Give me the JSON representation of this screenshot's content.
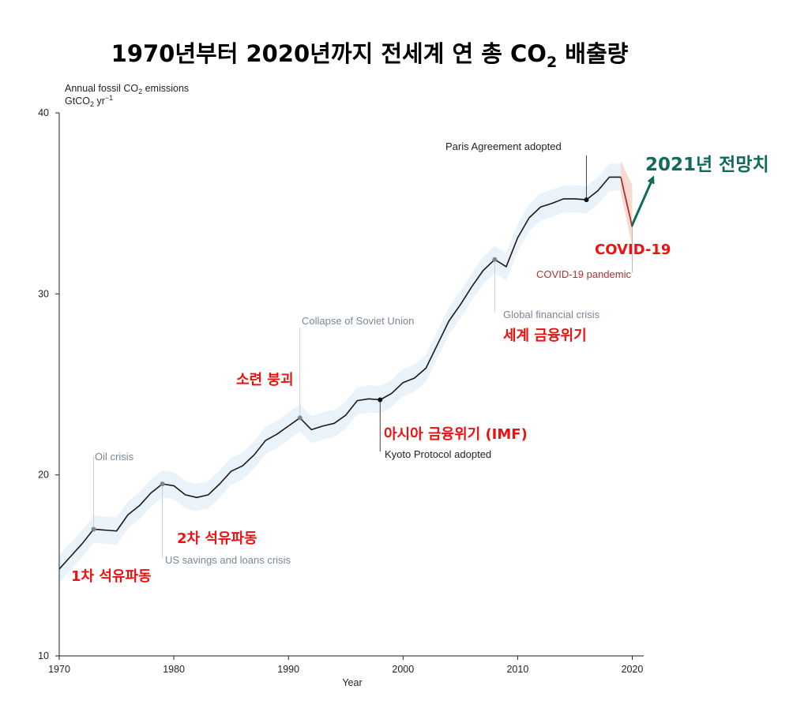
{
  "chart_data": {
    "type": "line",
    "title_main": "1970년부터 2020년까지 전세계 연 총 CO",
    "title_sub": "2",
    "title_end": " 배출량",
    "ylabel_line1": "Annual fossil CO",
    "ylabel_line1_sub": "2",
    "ylabel_line1_end": " emissions",
    "ylabel_line2": "GtCO",
    "ylabel_line2_sub": "2",
    "ylabel_line2_end": " yr",
    "ylabel_line2_sup": "−1",
    "xlabel": "Year",
    "xlim": [
      1970,
      2021
    ],
    "ylim": [
      10,
      40
    ],
    "xticks": [
      "1970",
      "1980",
      "1990",
      "2000",
      "2010",
      "2020"
    ],
    "yticks": [
      "10",
      "20",
      "30",
      "40"
    ],
    "series": [
      {
        "name": "Fossil CO2 emissions",
        "color": "#1a1a1a",
        "x": [
          1970,
          1971,
          1972,
          1973,
          1974,
          1975,
          1976,
          1977,
          1978,
          1979,
          1980,
          1981,
          1982,
          1983,
          1984,
          1985,
          1986,
          1987,
          1988,
          1989,
          1990,
          1991,
          1992,
          1993,
          1994,
          1995,
          1996,
          1997,
          1998,
          1999,
          2000,
          2001,
          2002,
          2003,
          2004,
          2005,
          2006,
          2007,
          2008,
          2009,
          2010,
          2011,
          2012,
          2013,
          2014,
          2015,
          2016,
          2017,
          2018,
          2019
        ],
        "values": [
          14.8,
          15.5,
          16.2,
          17.0,
          16.95,
          16.9,
          17.8,
          18.3,
          19.0,
          19.5,
          19.4,
          18.9,
          18.75,
          18.9,
          19.5,
          20.2,
          20.5,
          21.1,
          21.9,
          22.25,
          22.7,
          23.15,
          22.5,
          22.7,
          22.85,
          23.3,
          24.1,
          24.2,
          24.15,
          24.5,
          25.1,
          25.35,
          25.9,
          27.2,
          28.5,
          29.4,
          30.4,
          31.3,
          31.9,
          31.5,
          33.1,
          34.2,
          34.8,
          35.0,
          35.25,
          35.25,
          35.2,
          35.7,
          36.45,
          36.45
        ]
      },
      {
        "name": "COVID-19 drop",
        "color": "#b03030",
        "x": [
          2019,
          2020
        ],
        "values": [
          36.45,
          33.7
        ]
      }
    ],
    "uncertainty_band_halfwidth": 0.75,
    "events": [
      {
        "year": 1973,
        "value": 17.0,
        "label": "Oil crisis",
        "label_pos": "above",
        "style": "gray"
      },
      {
        "year": 1979,
        "value": 19.5,
        "label": "US savings and loans crisis",
        "label_pos": "below",
        "style": "gray"
      },
      {
        "year": 1991,
        "value": 23.15,
        "label": "Collapse of Soviet Union",
        "label_pos": "above",
        "style": "gray"
      },
      {
        "year": 1998,
        "value": 24.15,
        "label": "Kyoto Protocol adopted",
        "label_pos": "below",
        "style": "dark"
      },
      {
        "year": 2008,
        "value": 31.9,
        "label": "Global financial crisis",
        "label_pos": "below",
        "style": "gray"
      },
      {
        "year": 2016,
        "value": 35.2,
        "label": "Paris Agreement adopted",
        "label_pos": "above",
        "style": "dark"
      },
      {
        "year": 2020,
        "value": 33.7,
        "label": "COVID-19 pandemic",
        "label_pos": "below",
        "style": "covid"
      }
    ],
    "korean_annotations": [
      {
        "text": "1차 석유파동"
      },
      {
        "text": "2차 석유파동"
      },
      {
        "text": "소련 붕괴"
      },
      {
        "text": "아시아 금융위기 (IMF)"
      },
      {
        "text": "세계 금융위기"
      },
      {
        "text": "COVID-19"
      }
    ],
    "projection": {
      "text": "2021년 전망치",
      "color": "#126a5a"
    }
  }
}
